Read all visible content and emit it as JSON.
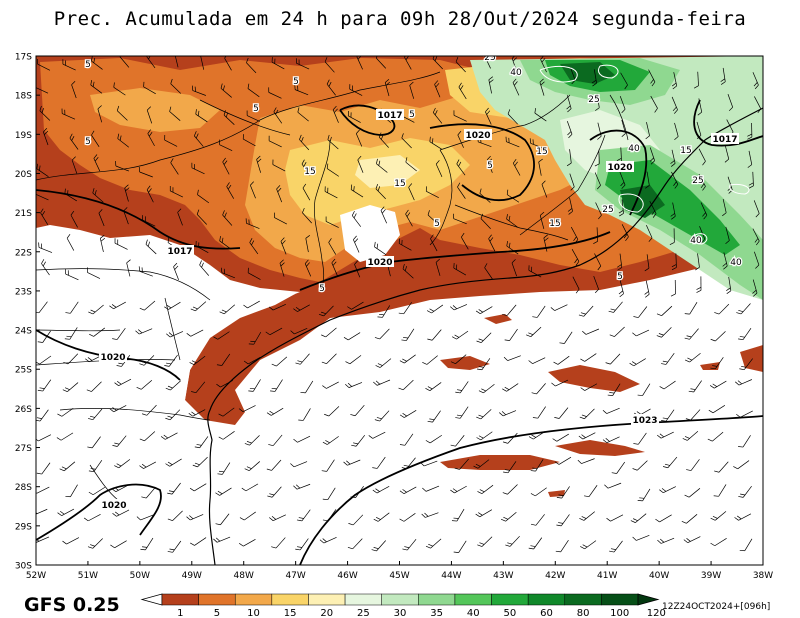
{
  "title": "Prec. Acumulada em 24 h para 09h 28/Out/2024 segunda-feira",
  "model_label": "GFS 0.25",
  "run_stamp": "12Z24OCT2024+[096h]",
  "map": {
    "lat_labels": [
      "17S",
      "18S",
      "19S",
      "20S",
      "21S",
      "22S",
      "23S",
      "24S",
      "25S",
      "26S",
      "27S",
      "28S",
      "29S",
      "30S"
    ],
    "lon_labels": [
      "52W",
      "51W",
      "50W",
      "49W",
      "48W",
      "47W",
      "46W",
      "45W",
      "44W",
      "43W",
      "42W",
      "41W",
      "40W",
      "39W",
      "38W"
    ],
    "isobar_labels": [
      "1017",
      "1017",
      "1017",
      "1020",
      "1020",
      "1020",
      "1020",
      "1020",
      "1023"
    ],
    "precip_labels": [
      "5",
      "5",
      "5",
      "5",
      "5",
      "5",
      "5",
      "5",
      "5",
      "15",
      "15",
      "15",
      "15",
      "15",
      "25",
      "25",
      "25",
      "25",
      "40",
      "40",
      "40",
      "40"
    ]
  },
  "colorbar": {
    "ticks": [
      "1",
      "5",
      "10",
      "15",
      "20",
      "25",
      "30",
      "35",
      "40",
      "50",
      "60",
      "80",
      "100",
      "120"
    ],
    "colors": [
      "#ffffff",
      "#b5401c",
      "#e0742a",
      "#f2a84a",
      "#f9d468",
      "#fdf0b4",
      "#e6f6df",
      "#c2e9bf",
      "#8fd890",
      "#54c65a",
      "#22a83a",
      "#10882a",
      "#0b6a20",
      "#064f17",
      "#033810"
    ]
  }
}
